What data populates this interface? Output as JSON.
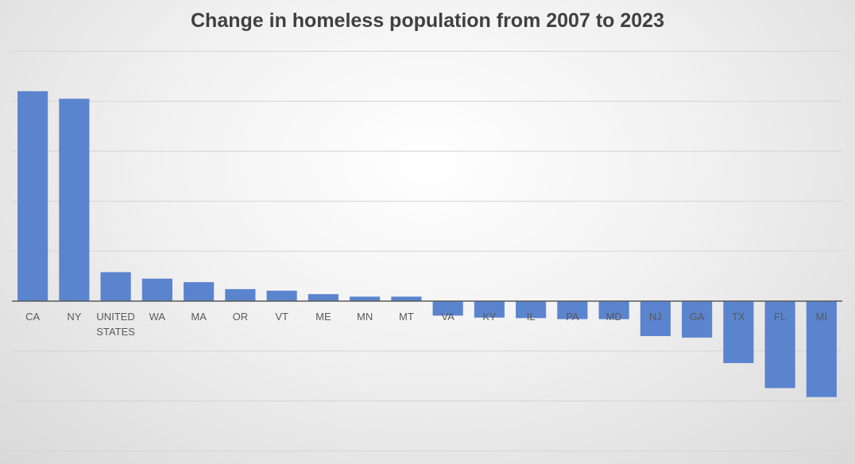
{
  "chart_data": {
    "type": "bar",
    "title": "Change in homeless population from 2007 to 2023",
    "xlabel": "",
    "ylabel": "",
    "categories": [
      "CA",
      "NY",
      "UNITED STATES",
      "WA",
      "MA",
      "OR",
      "VT",
      "ME",
      "MN",
      "MT",
      "VA",
      "KY",
      "IL",
      "PA",
      "MD",
      "NJ",
      "GA",
      "TX",
      "FL",
      "MI"
    ],
    "values": [
      42,
      40.5,
      5.8,
      4.5,
      3.8,
      2.4,
      2.1,
      1.4,
      0.9,
      0.9,
      -2.9,
      -3.3,
      -3.4,
      -3.6,
      -3.6,
      -7.0,
      -7.3,
      -12.4,
      -17.4,
      -19.2
    ],
    "ylim": [
      -30,
      50
    ],
    "gridline_step": 10,
    "grid": true,
    "legend": "none",
    "bar_color": "#5b84cf"
  }
}
